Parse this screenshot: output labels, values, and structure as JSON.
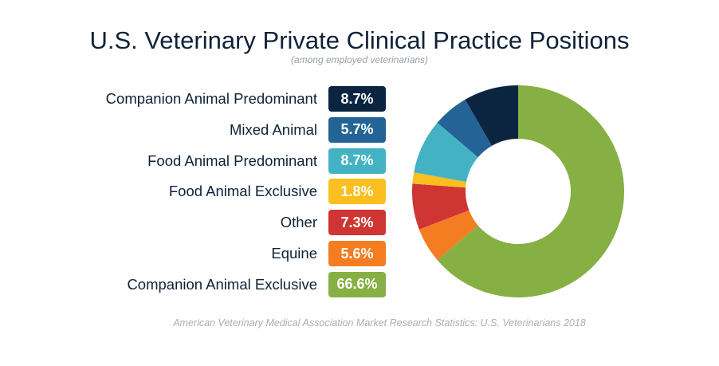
{
  "title": "U.S. Veterinary Private Clinical Practice Positions",
  "subtitle": "(among employed veterinarians)",
  "source": "American Veterinary Medical Association Market Research Statistics: U.S. Veterinarians 2018",
  "chart_data": {
    "type": "pie",
    "donut": true,
    "legend_position": "left",
    "slices": [
      {
        "label": "Companion Animal Predominant",
        "value": 8.7,
        "display": "8.7%",
        "color": "#0b2540"
      },
      {
        "label": "Mixed Animal",
        "value": 5.7,
        "display": "5.7%",
        "color": "#236395"
      },
      {
        "label": "Food Animal Predominant",
        "value": 8.7,
        "display": "8.7%",
        "color": "#43b3c3"
      },
      {
        "label": "Food Animal Exclusive",
        "value": 1.8,
        "display": "1.8%",
        "color": "#fbbf1f"
      },
      {
        "label": "Other",
        "value": 7.3,
        "display": "7.3%",
        "color": "#cf3533"
      },
      {
        "label": "Equine",
        "value": 5.6,
        "display": "5.6%",
        "color": "#f47d21"
      },
      {
        "label": "Companion Animal Exclusive",
        "value": 66.6,
        "display": "66.6%",
        "color": "#86b043"
      }
    ]
  }
}
